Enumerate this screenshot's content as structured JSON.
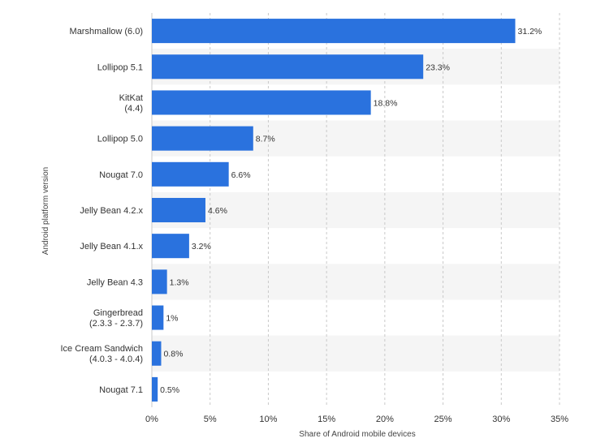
{
  "chart_data": {
    "type": "bar",
    "orientation": "horizontal",
    "categories": [
      [
        "Marshmallow (6.0)"
      ],
      [
        "Lollipop 5.1"
      ],
      [
        "KitKat",
        "(4.4)"
      ],
      [
        "Lollipop 5.0"
      ],
      [
        "Nougat 7.0"
      ],
      [
        "Jelly Bean 4.2.x"
      ],
      [
        "Jelly Bean 4.1.x"
      ],
      [
        "Jelly Bean 4.3"
      ],
      [
        "Gingerbread",
        "(2.3.3 - 2.3.7)"
      ],
      [
        "Ice Cream Sandwich",
        "(4.0.3 - 4.0.4)"
      ],
      [
        "Nougat 7.1"
      ]
    ],
    "values": [
      31.2,
      23.3,
      18.8,
      8.7,
      6.6,
      4.6,
      3.2,
      1.3,
      1,
      0.8,
      0.5
    ],
    "value_labels": [
      "31.2%",
      "23.3%",
      "18.8%",
      "8.7%",
      "6.6%",
      "4.6%",
      "3.2%",
      "1.3%",
      "1%",
      "0.8%",
      "0.5%"
    ],
    "xlim": [
      0,
      35
    ],
    "xticks": [
      0,
      5,
      10,
      15,
      20,
      25,
      30,
      35
    ],
    "xtick_labels": [
      "0%",
      "5%",
      "10%",
      "15%",
      "20%",
      "25%",
      "30%",
      "35%"
    ],
    "xlabel": "Share of Android mobile devices",
    "ylabel": "Android platform version",
    "grid": true,
    "colors": {
      "bar": "#2a72de",
      "grid": "#c9c9c9",
      "band": "#f5f5f5",
      "text": "#333333"
    }
  }
}
